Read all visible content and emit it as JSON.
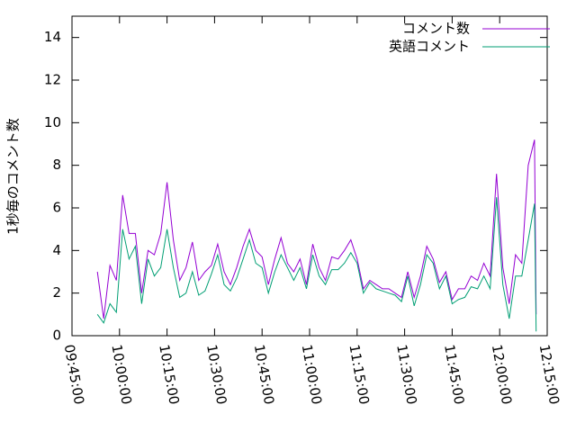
{
  "chart_data": {
    "type": "line",
    "ylabel": "1秒毎のコメント数",
    "x": [
      "09:53:00",
      "09:55:00",
      "09:57:00",
      "09:59:00",
      "10:01:00",
      "10:03:00",
      "10:05:00",
      "10:07:00",
      "10:09:00",
      "10:11:00",
      "10:13:00",
      "10:15:00",
      "10:17:00",
      "10:19:00",
      "10:21:00",
      "10:23:00",
      "10:25:00",
      "10:27:00",
      "10:29:00",
      "10:31:00",
      "10:33:00",
      "10:35:00",
      "10:37:00",
      "10:39:00",
      "10:41:00",
      "10:43:00",
      "10:45:00",
      "10:47:00",
      "10:49:00",
      "10:51:00",
      "10:53:00",
      "10:55:00",
      "10:57:00",
      "10:59:00",
      "11:01:00",
      "11:03:00",
      "11:05:00",
      "11:07:00",
      "11:09:00",
      "11:11:00",
      "11:13:00",
      "11:15:00",
      "11:17:00",
      "11:19:00",
      "11:21:00",
      "11:23:00",
      "11:25:00",
      "11:27:00",
      "11:29:00",
      "11:31:00",
      "11:33:00",
      "11:35:00",
      "11:37:00",
      "11:39:00",
      "11:41:00",
      "11:43:00",
      "11:45:00",
      "11:47:00",
      "11:49:00",
      "11:51:00",
      "11:53:00",
      "11:55:00",
      "11:57:00",
      "11:59:00",
      "12:01:00",
      "12:03:00",
      "12:05:00",
      "12:07:00",
      "12:09:00",
      "12:11:00",
      "12:11:30"
    ],
    "series": [
      {
        "name": "コメント数",
        "color": "#9400d3",
        "values": [
          3.0,
          0.8,
          3.3,
          2.6,
          6.6,
          4.8,
          4.8,
          2.0,
          4.0,
          3.8,
          4.8,
          7.2,
          4.5,
          2.6,
          3.2,
          4.4,
          2.6,
          3.0,
          3.3,
          4.3,
          3.0,
          2.4,
          3.2,
          4.2,
          5.0,
          4.0,
          3.7,
          2.4,
          3.6,
          4.6,
          3.4,
          3.0,
          3.6,
          2.4,
          4.3,
          3.2,
          2.6,
          3.7,
          3.6,
          4.0,
          4.5,
          3.6,
          2.2,
          2.6,
          2.4,
          2.2,
          2.2,
          2.0,
          1.8,
          3.0,
          1.8,
          2.8,
          4.2,
          3.6,
          2.5,
          3.0,
          1.7,
          2.2,
          2.2,
          2.8,
          2.6,
          3.4,
          2.8,
          7.6,
          3.2,
          1.5,
          3.8,
          3.4,
          8.0,
          9.2,
          1.0
        ]
      },
      {
        "name": "英語コメント",
        "color": "#009e73",
        "values": [
          1.0,
          0.6,
          1.5,
          1.1,
          5.0,
          3.6,
          4.2,
          1.5,
          3.6,
          2.8,
          3.2,
          5.0,
          3.2,
          1.8,
          2.0,
          3.0,
          1.9,
          2.1,
          2.9,
          3.8,
          2.4,
          2.1,
          2.7,
          3.6,
          4.5,
          3.4,
          3.2,
          2.0,
          3.0,
          3.8,
          3.2,
          2.6,
          3.2,
          2.2,
          3.8,
          2.8,
          2.4,
          3.1,
          3.1,
          3.4,
          3.9,
          3.4,
          2.0,
          2.5,
          2.2,
          2.1,
          2.0,
          1.9,
          1.6,
          2.8,
          1.4,
          2.4,
          3.8,
          3.4,
          2.2,
          2.8,
          1.5,
          1.7,
          1.8,
          2.3,
          2.2,
          2.8,
          2.2,
          6.5,
          2.4,
          0.8,
          2.8,
          2.8,
          4.5,
          6.2,
          0.2
        ]
      }
    ],
    "xlim": [
      "09:45:00",
      "12:15:00"
    ],
    "xticks": [
      "09:45:00",
      "10:00:00",
      "10:15:00",
      "10:30:00",
      "10:45:00",
      "11:00:00",
      "11:15:00",
      "11:30:00",
      "11:45:00",
      "12:00:00",
      "12:15:00"
    ],
    "ylim": [
      0,
      15
    ],
    "yticks": [
      0,
      2,
      4,
      6,
      8,
      10,
      12,
      14
    ],
    "legend": "top-right"
  }
}
